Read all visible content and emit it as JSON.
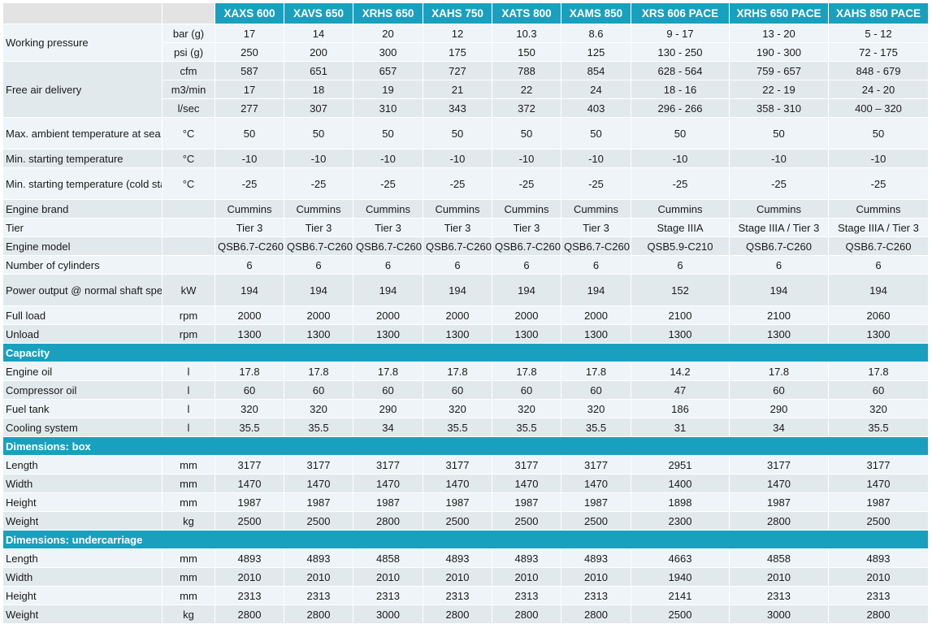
{
  "columns": [
    "XAXS 600",
    "XAVS 650",
    "XRHS 650",
    "XAHS 750",
    "XATS 800",
    "XAMS 850",
    "XRS 606 PACE",
    "XRHS 650 PACE",
    "XAHS 850 PACE"
  ],
  "rows": [
    {
      "label": "Working pressure",
      "unit": "bar (g)",
      "values": [
        "17",
        "14",
        "20",
        "12",
        "10.3",
        "8.6",
        "9 - 17",
        "13 - 20",
        "5 - 12"
      ]
    },
    {
      "label": "",
      "unit": "psi (g)",
      "values": [
        "250",
        "200",
        "300",
        "175",
        "150",
        "125",
        "130 - 250",
        "190 - 300",
        "72 - 175"
      ]
    },
    {
      "label": "",
      "unit": "cfm",
      "values": [
        "587",
        "651",
        "657",
        "727",
        "788",
        "854",
        "628 - 564",
        "759 - 657",
        "848 - 679"
      ]
    },
    {
      "label": "Free air delivery",
      "unit": "m3/min",
      "values": [
        "17",
        "18",
        "19",
        "21",
        "22",
        "24",
        "18 - 16",
        "22 - 19",
        "24 - 20"
      ]
    },
    {
      "label": "",
      "unit": "l/sec",
      "values": [
        "277",
        "307",
        "310",
        "343",
        "372",
        "403",
        "296 - 266",
        "358 - 310",
        "400 – 320"
      ]
    },
    {
      "label": "Max. ambient temperature at sea level",
      "unit": "°C",
      "values": [
        "50",
        "50",
        "50",
        "50",
        "50",
        "50",
        "50",
        "50",
        "50"
      ]
    },
    {
      "label": "Min. starting temperature",
      "unit": "°C",
      "values": [
        "-10",
        "-10",
        "-10",
        "-10",
        "-10",
        "-10",
        "-10",
        "-10",
        "-10"
      ]
    },
    {
      "label": "Min. starting temperature (cold start aid)",
      "unit": "°C",
      "values": [
        "-25",
        "-25",
        "-25",
        "-25",
        "-25",
        "-25",
        "-25",
        "-25",
        "-25"
      ]
    },
    {
      "label": "Engine brand",
      "unit": "",
      "values": [
        "Cummins",
        "Cummins",
        "Cummins",
        "Cummins",
        "Cummins",
        "Cummins",
        "Cummins",
        "Cummins",
        "Cummins"
      ]
    },
    {
      "label": "Tier",
      "unit": "",
      "values": [
        "Tier 3",
        "Tier 3",
        "Tier 3",
        "Tier 3",
        "Tier 3",
        "Tier 3",
        "Stage IIIA",
        "Stage IIIA / Tier 3",
        "Stage IIIA / Tier 3"
      ]
    },
    {
      "label": "Engine model",
      "unit": "",
      "values": [
        "QSB6.7-C260",
        "QSB6.7-C260",
        "QSB6.7-C260",
        "QSB6.7-C260",
        "QSB6.7-C260",
        "QSB6.7-C260",
        "QSB5.9-C210",
        "QSB6.7-C260",
        "QSB6.7-C260"
      ]
    },
    {
      "label": "Number of cylinders",
      "unit": "",
      "values": [
        "6",
        "6",
        "6",
        "6",
        "6",
        "6",
        "6",
        "6",
        "6"
      ]
    },
    {
      "label": "Power output @ normal shaft speed",
      "unit": "kW",
      "values": [
        "194",
        "194",
        "194",
        "194",
        "194",
        "194",
        "152",
        "194",
        "194"
      ]
    },
    {
      "label": "Full load",
      "unit": "rpm",
      "values": [
        "2000",
        "2000",
        "2000",
        "2000",
        "2000",
        "2000",
        "2100",
        "2100",
        "2060"
      ]
    },
    {
      "label": "Unload",
      "unit": "rpm",
      "values": [
        "1300",
        "1300",
        "1300",
        "1300",
        "1300",
        "1300",
        "1300",
        "1300",
        "1300"
      ]
    }
  ],
  "sections": [
    {
      "title": "Capacity",
      "rows": [
        {
          "label": "Engine oil",
          "unit": "l",
          "values": [
            "17.8",
            "17.8",
            "17.8",
            "17.8",
            "17.8",
            "17.8",
            "14.2",
            "17.8",
            "17.8"
          ]
        },
        {
          "label": "Compressor oil",
          "unit": "l",
          "values": [
            "60",
            "60",
            "60",
            "60",
            "60",
            "60",
            "47",
            "60",
            "60"
          ]
        },
        {
          "label": "Fuel tank",
          "unit": "l",
          "values": [
            "320",
            "320",
            "290",
            "320",
            "320",
            "320",
            "186",
            "290",
            "320"
          ]
        },
        {
          "label": "Cooling system",
          "unit": "l",
          "values": [
            "35.5",
            "35.5",
            "34",
            "35.5",
            "35.5",
            "35.5",
            "31",
            "34",
            "35.5"
          ]
        }
      ]
    },
    {
      "title": "Dimensions: box",
      "rows": [
        {
          "label": "Length",
          "unit": "mm",
          "values": [
            "3177",
            "3177",
            "3177",
            "3177",
            "3177",
            "3177",
            "2951",
            "3177",
            "3177"
          ]
        },
        {
          "label": "Width",
          "unit": "mm",
          "values": [
            "1470",
            "1470",
            "1470",
            "1470",
            "1470",
            "1470",
            "1400",
            "1470",
            "1470"
          ]
        },
        {
          "label": "Height",
          "unit": "mm",
          "values": [
            "1987",
            "1987",
            "1987",
            "1987",
            "1987",
            "1987",
            "1898",
            "1987",
            "1987"
          ]
        },
        {
          "label": "Weight",
          "unit": "kg",
          "values": [
            "2500",
            "2500",
            "2800",
            "2500",
            "2500",
            "2500",
            "2300",
            "2800",
            "2500"
          ]
        }
      ]
    },
    {
      "title": "Dimensions: undercarriage",
      "rows": [
        {
          "label": "Length",
          "unit": "mm",
          "values": [
            "4893",
            "4893",
            "4858",
            "4893",
            "4893",
            "4893",
            "4663",
            "4858",
            "4893"
          ]
        },
        {
          "label": "Width",
          "unit": "mm",
          "values": [
            "2010",
            "2010",
            "2010",
            "2010",
            "2010",
            "2010",
            "1940",
            "2010",
            "2010"
          ]
        },
        {
          "label": "Height",
          "unit": "mm",
          "values": [
            "2313",
            "2313",
            "2313",
            "2313",
            "2313",
            "2313",
            "2141",
            "2313",
            "2313"
          ]
        },
        {
          "label": "Weight",
          "unit": "kg",
          "values": [
            "2800",
            "2800",
            "3000",
            "2800",
            "2800",
            "2800",
            "2500",
            "3000",
            "2800"
          ]
        }
      ]
    }
  ]
}
